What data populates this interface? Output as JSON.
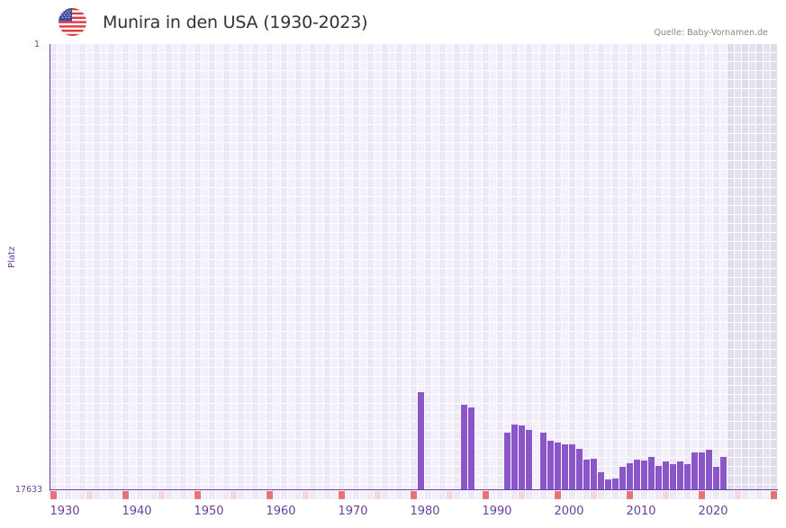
{
  "header": {
    "title": "Munira in den USA (1930-2023)",
    "source": "Quelle: Baby-Vornamen.de",
    "flag_icon": "us-flag-icon"
  },
  "colors": {
    "bar": "#8a56c8",
    "axis": "#6a3fa0",
    "grid_a": "#ece8f8",
    "grid_b": "#f3f0fb",
    "future_a": "#e0dcec",
    "future_b": "#e6e2f0",
    "decade_marker": "#e57378",
    "half_decade_marker": "#f5d5de"
  },
  "chart_data": {
    "type": "bar",
    "title": "Munira in den USA (1930-2023)",
    "xlabel": "",
    "ylabel": "Platz",
    "y_axis_inverted": true,
    "ylim": [
      1,
      17633
    ],
    "y_ticks": [
      "1",
      "17633"
    ],
    "x_range": [
      1928,
      2028
    ],
    "x_ticks": [
      "1930",
      "1940",
      "1950",
      "1960",
      "1970",
      "1980",
      "1990",
      "2000",
      "2010",
      "2020"
    ],
    "grid": true,
    "future_shaded_from": 2022,
    "note": "Bar height in px above baseline (max 495px = rank 1). Approximate rank = 17633 - height/495*17632.",
    "bars": [
      {
        "year": 1979,
        "h": 108,
        "rank": 13786
      },
      {
        "year": 1985,
        "h": 94,
        "rank": 14285
      },
      {
        "year": 1986,
        "h": 91,
        "rank": 14392
      },
      {
        "year": 1991,
        "h": 63,
        "rank": 15389
      },
      {
        "year": 1992,
        "h": 72,
        "rank": 15068
      },
      {
        "year": 1993,
        "h": 71,
        "rank": 15104
      },
      {
        "year": 1994,
        "h": 66,
        "rank": 15282
      },
      {
        "year": 1996,
        "h": 63,
        "rank": 15389
      },
      {
        "year": 1997,
        "h": 54,
        "rank": 15710
      },
      {
        "year": 1998,
        "h": 52,
        "rank": 15781
      },
      {
        "year": 1999,
        "h": 50,
        "rank": 15852
      },
      {
        "year": 2000,
        "h": 50,
        "rank": 15852
      },
      {
        "year": 2001,
        "h": 45,
        "rank": 16030
      },
      {
        "year": 2002,
        "h": 33,
        "rank": 16458
      },
      {
        "year": 2003,
        "h": 34,
        "rank": 16422
      },
      {
        "year": 2004,
        "h": 19,
        "rank": 16956
      },
      {
        "year": 2005,
        "h": 11,
        "rank": 17241
      },
      {
        "year": 2006,
        "h": 12,
        "rank": 17206
      },
      {
        "year": 2007,
        "h": 25,
        "rank": 16743
      },
      {
        "year": 2008,
        "h": 29,
        "rank": 16600
      },
      {
        "year": 2009,
        "h": 33,
        "rank": 16458
      },
      {
        "year": 2010,
        "h": 32,
        "rank": 16493
      },
      {
        "year": 2011,
        "h": 36,
        "rank": 16351
      },
      {
        "year": 2012,
        "h": 26,
        "rank": 16707
      },
      {
        "year": 2013,
        "h": 31,
        "rank": 16529
      },
      {
        "year": 2014,
        "h": 28,
        "rank": 16636
      },
      {
        "year": 2015,
        "h": 31,
        "rank": 16529
      },
      {
        "year": 2016,
        "h": 28,
        "rank": 16636
      },
      {
        "year": 2017,
        "h": 41,
        "rank": 16173
      },
      {
        "year": 2018,
        "h": 41,
        "rank": 16173
      },
      {
        "year": 2019,
        "h": 44,
        "rank": 16066
      },
      {
        "year": 2020,
        "h": 25,
        "rank": 16743
      },
      {
        "year": 2021,
        "h": 36,
        "rank": 16351
      }
    ]
  }
}
